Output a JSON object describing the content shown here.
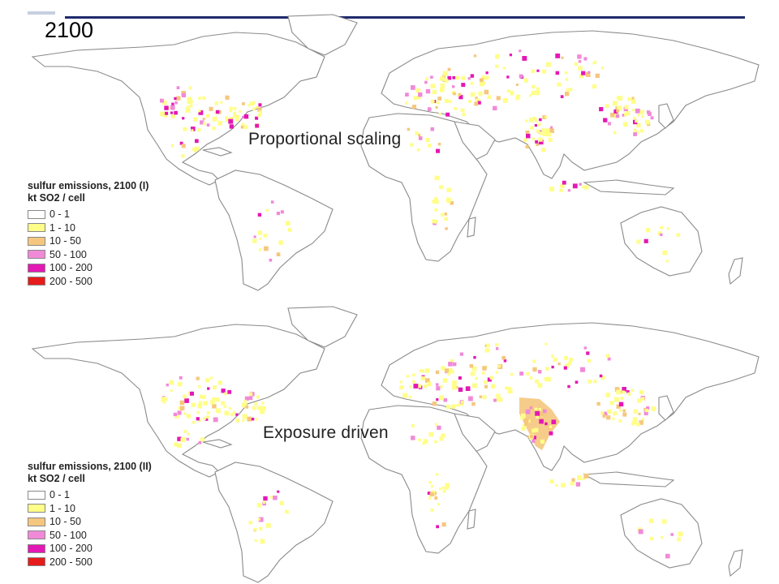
{
  "year_label": "2100",
  "panels": [
    {
      "id": "top",
      "label": "Proportional scaling",
      "legend": {
        "title": "sulfur emissions, 2100 (I)",
        "unit": "kt SO2 / cell",
        "classes": [
          {
            "range": "0 - 1",
            "color": "#ffffff"
          },
          {
            "range": "1 - 10",
            "color": "#fffe88"
          },
          {
            "range": "10 - 50",
            "color": "#f5c77e"
          },
          {
            "range": "50 - 100",
            "color": "#f08ad8"
          },
          {
            "range": "100 - 200",
            "color": "#e418b4"
          },
          {
            "range": "200 - 500",
            "color": "#e61b1b"
          }
        ]
      }
    },
    {
      "id": "bottom",
      "label": "Exposure driven",
      "legend": {
        "title": "sulfur emissions, 2100 (II)",
        "unit": "kt SO2 / cell",
        "classes": [
          {
            "range": "0 - 1",
            "color": "#ffffff"
          },
          {
            "range": "1 - 10",
            "color": "#fffe88"
          },
          {
            "range": "10 - 50",
            "color": "#f5c77e"
          },
          {
            "range": "50 - 100",
            "color": "#f08ad8"
          },
          {
            "range": "100 - 200",
            "color": "#e418b4"
          },
          {
            "range": "200 - 500",
            "color": "#e61b1b"
          }
        ]
      }
    }
  ]
}
